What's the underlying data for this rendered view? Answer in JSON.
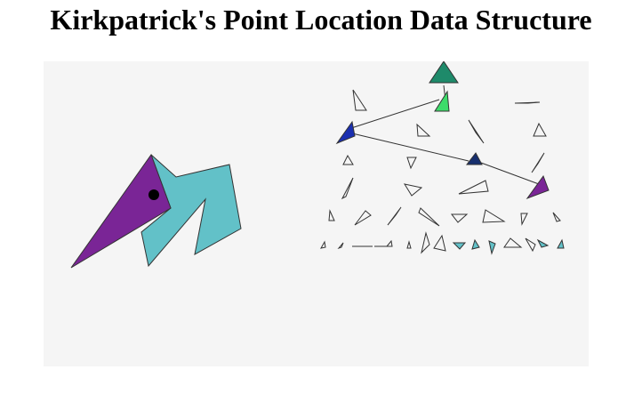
{
  "title": "Kirkpatrick's Point Location Data Structure",
  "colors": {
    "canvas_bg": "#f5f5f5",
    "purple": "#7a2596",
    "teal": "#62c1c8",
    "dark_teal": "#1e8a6a",
    "bright_green": "#3ddc6a",
    "blue": "#1a2fb0",
    "navy": "#172f6e",
    "query_point": "#000000",
    "outline": "#333333"
  },
  "icons": [
    "query-point-icon"
  ]
}
